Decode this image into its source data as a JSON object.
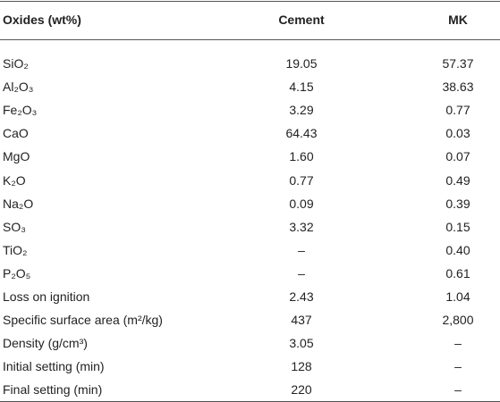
{
  "table": {
    "header": [
      "Oxides (wt%)",
      "Cement",
      "MK"
    ],
    "rows": [
      [
        "SiO₂",
        "19.05",
        "57.37"
      ],
      [
        "Al₂O₃",
        "4.15",
        "38.63"
      ],
      [
        "Fe₂O₃",
        "3.29",
        "0.77"
      ],
      [
        "CaO",
        "64.43",
        "0.03"
      ],
      [
        "MgO",
        "1.60",
        "0.07"
      ],
      [
        "K₂O",
        "0.77",
        "0.49"
      ],
      [
        "Na₂O",
        "0.09",
        "0.39"
      ],
      [
        "SO₃",
        "3.32",
        "0.15"
      ],
      [
        "TiO₂",
        "–",
        "0.40"
      ],
      [
        "P₂O₅",
        "–",
        "0.61"
      ],
      [
        "Loss on ignition",
        "2.43",
        "1.04"
      ],
      [
        "Specific surface area (m²/kg)",
        "437",
        "2,800"
      ],
      [
        "Density (g/cm³)",
        "3.05",
        "–"
      ],
      [
        "Initial setting (min)",
        "128",
        "–"
      ],
      [
        "Final setting (min)",
        "220",
        "–"
      ]
    ]
  }
}
